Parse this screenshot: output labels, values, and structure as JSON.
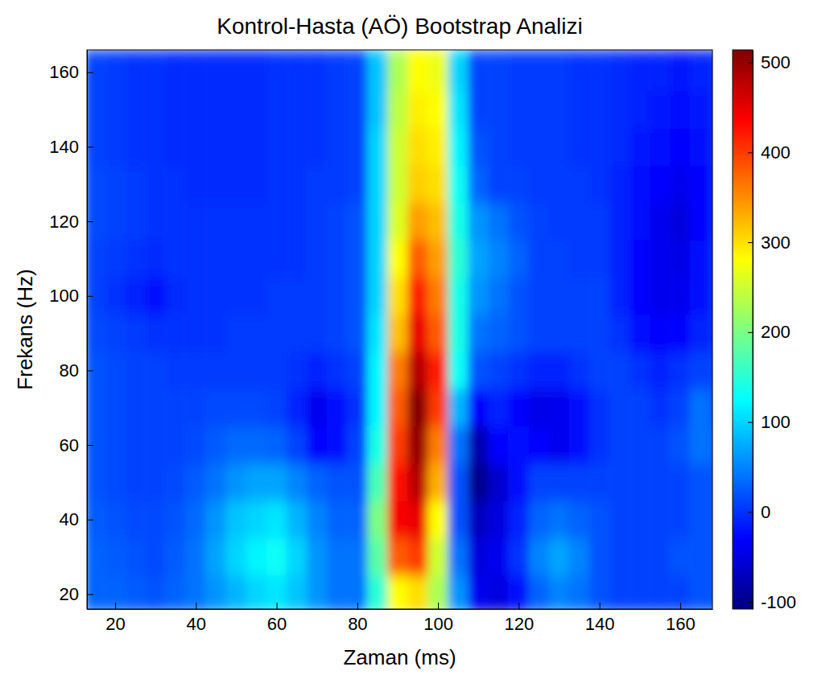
{
  "chart_data": {
    "type": "heatmap",
    "title": "Kontrol-Hasta (AÖ) Bootstrap Analizi",
    "x_label": "Zaman (ms)",
    "y_label": "Frekans (Hz)",
    "x": [
      15,
      20,
      25,
      30,
      35,
      40,
      45,
      50,
      55,
      60,
      65,
      70,
      75,
      80,
      85,
      90,
      95,
      100,
      105,
      110,
      115,
      120,
      125,
      130,
      135,
      140,
      145,
      150,
      155,
      160,
      165,
      170
    ],
    "y": [
      20,
      30,
      40,
      50,
      60,
      70,
      80,
      90,
      100,
      110,
      120,
      130,
      140,
      150,
      160
    ],
    "values": [
      [
        30,
        30,
        25,
        20,
        30,
        40,
        60,
        80,
        100,
        110,
        90,
        60,
        40,
        40,
        150,
        280,
        300,
        230,
        60,
        -40,
        -50,
        -20,
        30,
        50,
        40,
        20,
        10,
        10,
        10,
        10,
        20,
        20
      ],
      [
        30,
        25,
        20,
        15,
        25,
        40,
        70,
        100,
        120,
        130,
        100,
        60,
        40,
        40,
        180,
        380,
        400,
        250,
        40,
        -50,
        -40,
        0,
        50,
        70,
        50,
        20,
        10,
        10,
        10,
        20,
        20,
        20
      ],
      [
        25,
        20,
        15,
        15,
        20,
        35,
        60,
        90,
        100,
        110,
        80,
        50,
        30,
        30,
        200,
        440,
        450,
        280,
        20,
        -70,
        -50,
        -10,
        30,
        40,
        30,
        20,
        10,
        10,
        10,
        10,
        20,
        20
      ],
      [
        20,
        15,
        10,
        10,
        15,
        25,
        40,
        60,
        70,
        70,
        50,
        30,
        20,
        20,
        170,
        430,
        480,
        330,
        20,
        -100,
        -60,
        -20,
        10,
        10,
        10,
        10,
        10,
        10,
        10,
        10,
        20,
        20
      ],
      [
        20,
        15,
        10,
        10,
        10,
        15,
        25,
        35,
        35,
        30,
        10,
        -30,
        -20,
        10,
        140,
        400,
        500,
        360,
        40,
        -80,
        -30,
        -20,
        -30,
        -40,
        -20,
        0,
        10,
        10,
        10,
        20,
        40,
        30
      ],
      [
        20,
        15,
        10,
        10,
        10,
        10,
        15,
        15,
        15,
        10,
        -10,
        -40,
        -20,
        0,
        120,
        380,
        510,
        400,
        80,
        -30,
        -10,
        -30,
        -45,
        -40,
        -20,
        0,
        10,
        10,
        0,
        10,
        40,
        20
      ],
      [
        20,
        15,
        10,
        10,
        5,
        5,
        5,
        5,
        5,
        5,
        0,
        -10,
        0,
        10,
        120,
        360,
        480,
        420,
        130,
        20,
        10,
        0,
        -10,
        -10,
        0,
        10,
        10,
        0,
        -10,
        0,
        10,
        10
      ],
      [
        15,
        10,
        5,
        0,
        0,
        0,
        0,
        5,
        5,
        5,
        5,
        5,
        10,
        20,
        110,
        320,
        450,
        380,
        140,
        40,
        30,
        20,
        10,
        10,
        10,
        10,
        0,
        -20,
        -30,
        -30,
        -10,
        0
      ],
      [
        10,
        0,
        -10,
        -20,
        -5,
        0,
        0,
        0,
        0,
        5,
        5,
        5,
        10,
        20,
        100,
        300,
        420,
        360,
        140,
        60,
        40,
        20,
        10,
        10,
        10,
        10,
        -10,
        -30,
        -40,
        -40,
        -20,
        0
      ],
      [
        10,
        5,
        0,
        -5,
        0,
        0,
        0,
        0,
        0,
        0,
        0,
        5,
        10,
        20,
        100,
        280,
        380,
        340,
        150,
        70,
        50,
        30,
        10,
        10,
        5,
        5,
        -10,
        -30,
        -40,
        -45,
        -25,
        0
      ],
      [
        15,
        10,
        5,
        0,
        0,
        0,
        0,
        0,
        0,
        0,
        0,
        5,
        10,
        20,
        100,
        260,
        340,
        320,
        140,
        60,
        40,
        20,
        10,
        5,
        5,
        5,
        -10,
        -25,
        -40,
        -50,
        -30,
        -5
      ],
      [
        15,
        10,
        5,
        0,
        0,
        -5,
        -5,
        -5,
        -5,
        0,
        0,
        5,
        5,
        10,
        100,
        250,
        310,
        300,
        130,
        30,
        10,
        10,
        5,
        5,
        5,
        0,
        -10,
        -20,
        -30,
        -40,
        -30,
        -5
      ],
      [
        10,
        5,
        0,
        0,
        -5,
        -5,
        -5,
        -5,
        -5,
        0,
        0,
        0,
        5,
        10,
        100,
        250,
        300,
        290,
        120,
        20,
        10,
        5,
        5,
        5,
        0,
        0,
        -5,
        -15,
        -20,
        -30,
        -20,
        -5
      ],
      [
        10,
        5,
        0,
        0,
        -5,
        -5,
        -5,
        -5,
        -5,
        0,
        0,
        0,
        5,
        10,
        90,
        240,
        290,
        280,
        110,
        10,
        10,
        5,
        5,
        5,
        0,
        0,
        -5,
        -10,
        -15,
        -20,
        -15,
        -5
      ],
      [
        10,
        5,
        0,
        0,
        -5,
        -5,
        -5,
        -5,
        -5,
        0,
        0,
        0,
        5,
        10,
        90,
        230,
        280,
        270,
        100,
        10,
        10,
        5,
        5,
        5,
        0,
        0,
        -5,
        -10,
        -10,
        -15,
        -10,
        -5
      ]
    ],
    "xlim": [
      13,
      168
    ],
    "ylim": [
      16,
      166
    ],
    "xticks": [
      20,
      40,
      60,
      80,
      100,
      120,
      140,
      160
    ],
    "yticks": [
      20,
      40,
      60,
      80,
      100,
      120,
      140,
      160
    ],
    "clim": [
      -108,
      514
    ],
    "cticks": [
      -100,
      0,
      100,
      200,
      300,
      400,
      500
    ]
  }
}
